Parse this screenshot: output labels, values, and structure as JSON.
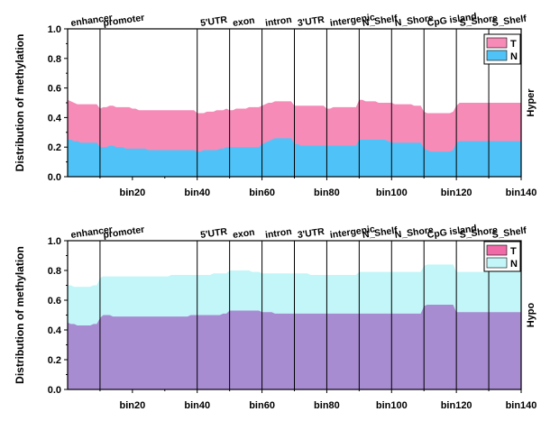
{
  "chart_data": [
    {
      "type": "area",
      "panel": "Hyper",
      "side_label": "Hyper",
      "ylabel": "Distribution of methylation",
      "ylim": [
        0,
        1.0
      ],
      "yticks": [
        "0.0",
        "0.2",
        "0.4",
        "0.6",
        "0.8",
        "1.0"
      ],
      "xlim": [
        0,
        140
      ],
      "xticks": [
        {
          "value": 20,
          "label": "bin20"
        },
        {
          "value": 40,
          "label": "bin40"
        },
        {
          "value": 60,
          "label": "bin60"
        },
        {
          "value": 80,
          "label": "bin80"
        },
        {
          "value": 100,
          "label": "bin100"
        },
        {
          "value": 120,
          "label": "bin120"
        },
        {
          "value": 140,
          "label": "bin140"
        }
      ],
      "regions": [
        {
          "label": "enhancer",
          "start": 0,
          "end": 10
        },
        {
          "label": "promoter",
          "start": 10,
          "end": 40
        },
        {
          "label": "5'UTR",
          "start": 40,
          "end": 50
        },
        {
          "label": "exon",
          "start": 50,
          "end": 60
        },
        {
          "label": "intron",
          "start": 60,
          "end": 70
        },
        {
          "label": "3'UTR",
          "start": 70,
          "end": 80
        },
        {
          "label": "intergenic",
          "start": 80,
          "end": 90
        },
        {
          "label": "N_Shelf",
          "start": 90,
          "end": 100
        },
        {
          "label": "N_Shore",
          "start": 100,
          "end": 110
        },
        {
          "label": "CpG island",
          "start": 110,
          "end": 120
        },
        {
          "label": "S_Shore",
          "start": 120,
          "end": 130
        },
        {
          "label": "S_Shelf",
          "start": 130,
          "end": 140
        }
      ],
      "legend": [
        {
          "name": "T",
          "color": "#F68BB8"
        },
        {
          "name": "N",
          "color": "#4FC3F7"
        }
      ],
      "x": [
        0,
        1,
        2,
        3,
        4,
        5,
        6,
        7,
        8,
        9,
        10,
        11,
        12,
        13,
        14,
        15,
        16,
        17,
        18,
        19,
        20,
        21,
        22,
        23,
        24,
        25,
        26,
        27,
        28,
        29,
        30,
        31,
        32,
        33,
        34,
        35,
        36,
        37,
        38,
        39,
        40,
        41,
        42,
        43,
        44,
        45,
        46,
        47,
        48,
        49,
        50,
        51,
        52,
        53,
        54,
        55,
        56,
        57,
        58,
        59,
        60,
        61,
        62,
        63,
        64,
        65,
        66,
        67,
        68,
        69,
        70,
        71,
        72,
        73,
        74,
        75,
        76,
        77,
        78,
        79,
        80,
        81,
        82,
        83,
        84,
        85,
        86,
        87,
        88,
        89,
        90,
        91,
        92,
        93,
        94,
        95,
        96,
        97,
        98,
        99,
        100,
        101,
        102,
        103,
        104,
        105,
        106,
        107,
        108,
        109,
        110,
        111,
        112,
        113,
        114,
        115,
        116,
        117,
        118,
        119,
        120,
        121,
        122,
        123,
        124,
        125,
        126,
        127,
        128,
        129,
        130,
        131,
        132,
        133,
        134,
        135,
        136,
        137,
        138,
        139,
        140
      ],
      "series": [
        {
          "name": "N",
          "color": "#4FC3F7",
          "values": [
            0.25,
            0.25,
            0.24,
            0.24,
            0.23,
            0.23,
            0.23,
            0.23,
            0.23,
            0.23,
            0.2,
            0.2,
            0.2,
            0.21,
            0.21,
            0.2,
            0.2,
            0.2,
            0.19,
            0.19,
            0.19,
            0.19,
            0.19,
            0.19,
            0.19,
            0.18,
            0.18,
            0.18,
            0.18,
            0.18,
            0.18,
            0.18,
            0.18,
            0.18,
            0.18,
            0.18,
            0.18,
            0.18,
            0.18,
            0.18,
            0.17,
            0.17,
            0.18,
            0.18,
            0.18,
            0.18,
            0.18,
            0.19,
            0.19,
            0.2,
            0.2,
            0.2,
            0.2,
            0.2,
            0.2,
            0.2,
            0.2,
            0.2,
            0.2,
            0.2,
            0.22,
            0.23,
            0.24,
            0.25,
            0.26,
            0.26,
            0.26,
            0.26,
            0.26,
            0.26,
            0.22,
            0.22,
            0.21,
            0.21,
            0.21,
            0.21,
            0.21,
            0.21,
            0.21,
            0.21,
            0.21,
            0.21,
            0.21,
            0.21,
            0.21,
            0.21,
            0.21,
            0.21,
            0.21,
            0.21,
            0.25,
            0.25,
            0.25,
            0.25,
            0.25,
            0.25,
            0.25,
            0.25,
            0.25,
            0.24,
            0.23,
            0.23,
            0.23,
            0.23,
            0.23,
            0.23,
            0.23,
            0.23,
            0.23,
            0.23,
            0.19,
            0.18,
            0.17,
            0.17,
            0.17,
            0.17,
            0.17,
            0.17,
            0.17,
            0.18,
            0.23,
            0.24,
            0.24,
            0.24,
            0.24,
            0.24,
            0.24,
            0.24,
            0.24,
            0.24,
            0.24,
            0.24,
            0.24,
            0.24,
            0.24,
            0.24,
            0.24,
            0.24,
            0.24,
            0.24,
            0.24
          ]
        },
        {
          "name": "T",
          "color": "#F68BB8",
          "values": [
            0.52,
            0.51,
            0.5,
            0.49,
            0.49,
            0.49,
            0.49,
            0.49,
            0.49,
            0.49,
            0.46,
            0.47,
            0.47,
            0.48,
            0.48,
            0.47,
            0.47,
            0.47,
            0.47,
            0.47,
            0.46,
            0.46,
            0.45,
            0.45,
            0.45,
            0.45,
            0.45,
            0.45,
            0.45,
            0.45,
            0.45,
            0.45,
            0.45,
            0.45,
            0.45,
            0.45,
            0.45,
            0.45,
            0.45,
            0.45,
            0.43,
            0.43,
            0.43,
            0.44,
            0.44,
            0.44,
            0.45,
            0.45,
            0.45,
            0.46,
            0.45,
            0.45,
            0.46,
            0.46,
            0.46,
            0.46,
            0.47,
            0.47,
            0.47,
            0.47,
            0.48,
            0.49,
            0.5,
            0.5,
            0.51,
            0.51,
            0.51,
            0.51,
            0.51,
            0.51,
            0.48,
            0.48,
            0.48,
            0.48,
            0.48,
            0.48,
            0.48,
            0.48,
            0.48,
            0.48,
            0.46,
            0.46,
            0.47,
            0.47,
            0.47,
            0.47,
            0.47,
            0.47,
            0.47,
            0.47,
            0.52,
            0.52,
            0.51,
            0.51,
            0.51,
            0.51,
            0.5,
            0.5,
            0.5,
            0.5,
            0.5,
            0.49,
            0.49,
            0.49,
            0.49,
            0.49,
            0.49,
            0.48,
            0.48,
            0.48,
            0.44,
            0.43,
            0.43,
            0.43,
            0.43,
            0.43,
            0.43,
            0.43,
            0.43,
            0.44,
            0.48,
            0.5,
            0.5,
            0.5,
            0.5,
            0.5,
            0.5,
            0.5,
            0.5,
            0.5,
            0.5,
            0.5,
            0.5,
            0.5,
            0.5,
            0.5,
            0.5,
            0.5,
            0.5,
            0.5,
            0.5
          ]
        }
      ]
    },
    {
      "type": "area",
      "panel": "Hypo",
      "side_label": "Hypo",
      "ylabel": "Distribution of methylation",
      "ylim": [
        0,
        1.0
      ],
      "yticks": [
        "0.0",
        "0.2",
        "0.4",
        "0.6",
        "0.8",
        "1.0"
      ],
      "xlim": [
        0,
        140
      ],
      "xticks": [
        {
          "value": 20,
          "label": "bin20"
        },
        {
          "value": 40,
          "label": "bin40"
        },
        {
          "value": 60,
          "label": "bin60"
        },
        {
          "value": 80,
          "label": "bin80"
        },
        {
          "value": 100,
          "label": "bin100"
        },
        {
          "value": 120,
          "label": "bin120"
        },
        {
          "value": 140,
          "label": "bin140"
        }
      ],
      "regions": [
        {
          "label": "enhancer",
          "start": 0,
          "end": 10
        },
        {
          "label": "promoter",
          "start": 10,
          "end": 40
        },
        {
          "label": "5'UTR",
          "start": 40,
          "end": 50
        },
        {
          "label": "exon",
          "start": 50,
          "end": 60
        },
        {
          "label": "intron",
          "start": 60,
          "end": 70
        },
        {
          "label": "3'UTR",
          "start": 70,
          "end": 80
        },
        {
          "label": "intergenic",
          "start": 80,
          "end": 90
        },
        {
          "label": "N_Shelf",
          "start": 90,
          "end": 100
        },
        {
          "label": "N_Shore",
          "start": 100,
          "end": 110
        },
        {
          "label": "CpG island",
          "start": 110,
          "end": 120
        },
        {
          "label": "S_Shore",
          "start": 120,
          "end": 130
        },
        {
          "label": "S_Shelf",
          "start": 130,
          "end": 140
        }
      ],
      "legend": [
        {
          "name": "T",
          "color": "#F06AA8"
        },
        {
          "name": "N",
          "color": "#C2F6F8"
        }
      ],
      "x": [
        0,
        1,
        2,
        3,
        4,
        5,
        6,
        7,
        8,
        9,
        10,
        11,
        12,
        13,
        14,
        15,
        16,
        17,
        18,
        19,
        20,
        21,
        22,
        23,
        24,
        25,
        26,
        27,
        28,
        29,
        30,
        31,
        32,
        33,
        34,
        35,
        36,
        37,
        38,
        39,
        40,
        41,
        42,
        43,
        44,
        45,
        46,
        47,
        48,
        49,
        50,
        51,
        52,
        53,
        54,
        55,
        56,
        57,
        58,
        59,
        60,
        61,
        62,
        63,
        64,
        65,
        66,
        67,
        68,
        69,
        70,
        71,
        72,
        73,
        74,
        75,
        76,
        77,
        78,
        79,
        80,
        81,
        82,
        83,
        84,
        85,
        86,
        87,
        88,
        89,
        90,
        91,
        92,
        93,
        94,
        95,
        96,
        97,
        98,
        99,
        100,
        101,
        102,
        103,
        104,
        105,
        106,
        107,
        108,
        109,
        110,
        111,
        112,
        113,
        114,
        115,
        116,
        117,
        118,
        119,
        120,
        121,
        122,
        123,
        124,
        125,
        126,
        127,
        128,
        129,
        130,
        131,
        132,
        133,
        134,
        135,
        136,
        137,
        138,
        139,
        140
      ],
      "overlap_color": "#A88CD2",
      "series": [
        {
          "name": "T",
          "color": "#F06AA8",
          "values": [
            0.45,
            0.44,
            0.44,
            0.43,
            0.43,
            0.43,
            0.43,
            0.43,
            0.44,
            0.44,
            0.48,
            0.5,
            0.5,
            0.5,
            0.49,
            0.49,
            0.49,
            0.49,
            0.49,
            0.49,
            0.49,
            0.49,
            0.49,
            0.49,
            0.49,
            0.49,
            0.49,
            0.49,
            0.49,
            0.49,
            0.49,
            0.49,
            0.49,
            0.49,
            0.49,
            0.49,
            0.49,
            0.49,
            0.5,
            0.5,
            0.5,
            0.5,
            0.5,
            0.5,
            0.5,
            0.5,
            0.5,
            0.5,
            0.51,
            0.51,
            0.53,
            0.53,
            0.53,
            0.53,
            0.53,
            0.53,
            0.53,
            0.53,
            0.53,
            0.53,
            0.52,
            0.52,
            0.52,
            0.52,
            0.51,
            0.51,
            0.51,
            0.51,
            0.51,
            0.51,
            0.51,
            0.51,
            0.51,
            0.51,
            0.51,
            0.51,
            0.51,
            0.51,
            0.51,
            0.51,
            0.51,
            0.51,
            0.51,
            0.51,
            0.51,
            0.51,
            0.51,
            0.51,
            0.51,
            0.51,
            0.51,
            0.51,
            0.51,
            0.51,
            0.51,
            0.51,
            0.51,
            0.51,
            0.51,
            0.51,
            0.51,
            0.51,
            0.51,
            0.51,
            0.51,
            0.51,
            0.51,
            0.51,
            0.51,
            0.51,
            0.56,
            0.57,
            0.57,
            0.57,
            0.57,
            0.57,
            0.57,
            0.57,
            0.57,
            0.57,
            0.52,
            0.52,
            0.52,
            0.52,
            0.52,
            0.52,
            0.52,
            0.52,
            0.52,
            0.52,
            0.52,
            0.52,
            0.52,
            0.52,
            0.52,
            0.52,
            0.52,
            0.52,
            0.52,
            0.52,
            0.52
          ]
        },
        {
          "name": "N",
          "color": "#C2F6F8",
          "values": [
            0.7,
            0.7,
            0.69,
            0.69,
            0.69,
            0.69,
            0.69,
            0.69,
            0.7,
            0.7,
            0.75,
            0.76,
            0.76,
            0.76,
            0.76,
            0.76,
            0.76,
            0.76,
            0.76,
            0.76,
            0.76,
            0.76,
            0.76,
            0.76,
            0.76,
            0.76,
            0.76,
            0.76,
            0.76,
            0.76,
            0.76,
            0.76,
            0.77,
            0.77,
            0.77,
            0.77,
            0.77,
            0.77,
            0.77,
            0.77,
            0.77,
            0.77,
            0.77,
            0.77,
            0.77,
            0.78,
            0.78,
            0.78,
            0.78,
            0.78,
            0.8,
            0.8,
            0.8,
            0.8,
            0.8,
            0.8,
            0.8,
            0.79,
            0.79,
            0.79,
            0.78,
            0.78,
            0.78,
            0.78,
            0.78,
            0.78,
            0.78,
            0.78,
            0.78,
            0.78,
            0.78,
            0.78,
            0.78,
            0.78,
            0.78,
            0.77,
            0.77,
            0.77,
            0.77,
            0.77,
            0.77,
            0.77,
            0.77,
            0.77,
            0.77,
            0.77,
            0.77,
            0.77,
            0.77,
            0.77,
            0.79,
            0.79,
            0.79,
            0.79,
            0.79,
            0.79,
            0.79,
            0.79,
            0.79,
            0.79,
            0.79,
            0.79,
            0.79,
            0.79,
            0.79,
            0.79,
            0.79,
            0.79,
            0.79,
            0.79,
            0.83,
            0.84,
            0.84,
            0.84,
            0.84,
            0.84,
            0.84,
            0.84,
            0.84,
            0.84,
            0.79,
            0.79,
            0.79,
            0.79,
            0.79,
            0.79,
            0.79,
            0.79,
            0.79,
            0.79,
            0.79,
            0.79,
            0.79,
            0.79,
            0.79,
            0.79,
            0.79,
            0.79,
            0.79,
            0.79,
            0.79
          ]
        }
      ]
    }
  ]
}
